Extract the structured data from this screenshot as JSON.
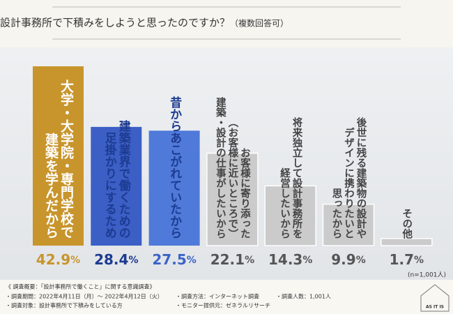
{
  "chart_data": {
    "type": "bar",
    "title": "なぜ設計事務所で下積みをしようと思ったのですか？",
    "subtitle": "（複数回答可）",
    "categories": [
      [
        "大学・大学院・専門学校で",
        "建築を学んだから"
      ],
      [
        "建築業界で働くための",
        "足掛かりにするため"
      ],
      [
        "昔からあこがれていたから"
      ],
      [
        "お客様に寄り添った",
        "（お客様に近いところで）",
        "建築・設計の仕事がしたいから"
      ],
      [
        "将来独立して設計事務所を",
        "経営したいから"
      ],
      [
        "後世に残る建築物の設計や",
        "デザインに携わりたいと",
        "思ったから"
      ],
      [
        "その他"
      ]
    ],
    "values": [
      42.9,
      28.4,
      27.5,
      22.1,
      14.3,
      9.9,
      1.7
    ],
    "value_labels": [
      "42.9%",
      "28.4%",
      "27.5%",
      "22.1%",
      "14.3%",
      "9.9%",
      "1.7%"
    ],
    "colors": [
      "#c8952c",
      "#3c5fc6",
      "#4f7ad9",
      "#cbcbcb",
      "#cbcbcb",
      "#cbcbcb",
      "#cbcbcb"
    ],
    "note": "(n=1,001人)"
  },
  "survey": {
    "heading": "《 調査概要：「設計事務所で働くこと」に関する意識調査》",
    "items": [
      "・調査期間：2022年4月11日（月）～ 2022年4月12日（火）",
      "・調査対象：設計事務所で下積みをしている方",
      "・調査方法：インターネット調査",
      "・モニター提供元：ゼネラルリサーチ",
      "・調査人数：1,001人"
    ]
  },
  "logo": "AS IT IS"
}
